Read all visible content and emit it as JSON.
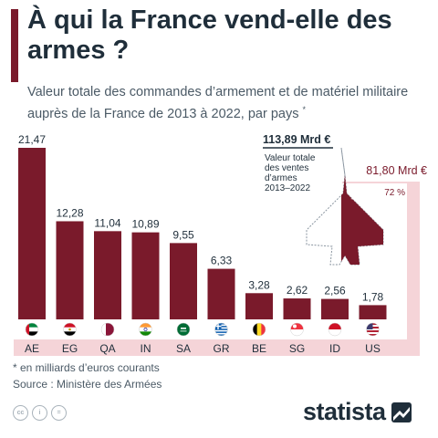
{
  "header": {
    "title": "À qui la France vend-elle des armes ?",
    "subtitle": "Valeur totale des commandes d’armement et de matériel militaire auprès de la France de 2013 à 2022, par pays",
    "subtitle_mark": "*"
  },
  "chart_data": {
    "type": "bar",
    "categories": [
      "AE",
      "EG",
      "QA",
      "IN",
      "SA",
      "GR",
      "BE",
      "SG",
      "ID",
      "US"
    ],
    "values": [
      21.47,
      12.28,
      11.04,
      10.89,
      9.55,
      6.33,
      3.28,
      2.62,
      2.56,
      1.78
    ],
    "value_labels": [
      "21,47",
      "12,28",
      "11,04",
      "10,89",
      "9,55",
      "6,33",
      "3,28",
      "2,62",
      "2,56",
      "1,78"
    ],
    "ylim": [
      0,
      22
    ],
    "grid": false,
    "bar_color": "#7a1a2b",
    "callout": {
      "total_label": "113,89 Mrd €",
      "total_caption": [
        "Valeur totale",
        "des ventes",
        "d’armes",
        "2013–2022"
      ],
      "top10_label": "81,80 Mrd €",
      "top10_share": "72 %",
      "top10_share_value": 0.72,
      "bracket_color": "#f5d4d8"
    }
  },
  "flags": [
    "uae-flag-icon",
    "egypt-flag-icon",
    "qatar-flag-icon",
    "india-flag-icon",
    "saudi-arabia-flag-icon",
    "greece-flag-icon",
    "belgium-flag-icon",
    "singapore-flag-icon",
    "indonesia-flag-icon",
    "usa-flag-icon"
  ],
  "footer": {
    "note": "* en milliards d’euros courants",
    "source": "Source : Ministère des Armées",
    "license_icons": [
      "creative-commons-icon",
      "attribution-icon",
      "no-derivatives-icon"
    ],
    "logo": "statista"
  },
  "colors": {
    "accent": "#7a1a2b",
    "text": "#1f2e3a",
    "muted": "#4b5a66",
    "pink": "#f5d4d8"
  }
}
